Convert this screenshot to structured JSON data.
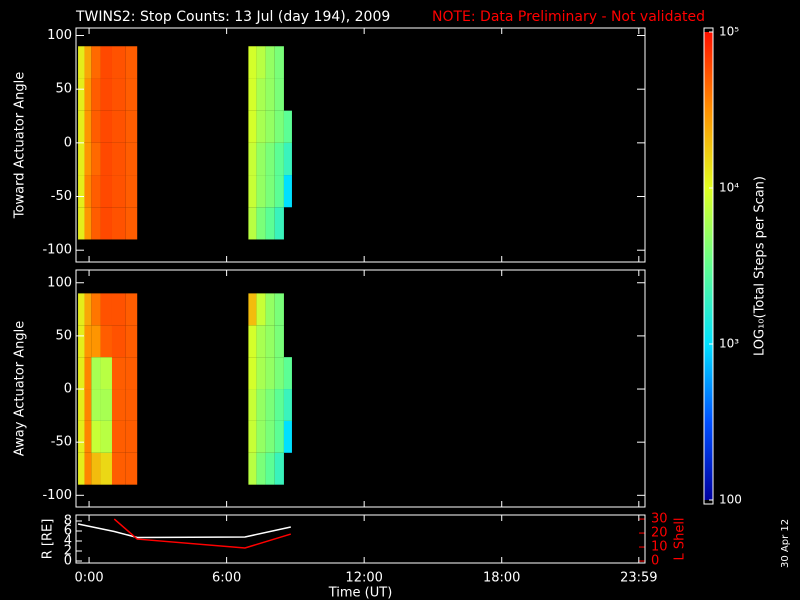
{
  "title": "TWINS2: Stop Counts: 13 Jul (day 194), 2009",
  "note": "NOTE: Data Preliminary - Not validated",
  "date_stamp": "30 Apr 12",
  "colorbar": {
    "label": "LOG₁₀(Total Steps per Scan)",
    "lim": [
      100,
      100000
    ],
    "log": true,
    "ticks": [
      100,
      {
        "value": 1000,
        "label": "10³"
      },
      {
        "value": 10000,
        "label": "10⁴"
      },
      {
        "value": 100000,
        "label": "10⁵"
      }
    ],
    "colormap": [
      "#0000a0",
      "#0050ff",
      "#00e0ff",
      "#60ff90",
      "#e0ff20",
      "#ff9000",
      "#ff1000"
    ]
  },
  "chart_data": [
    {
      "type": "heatmap",
      "ylabel": "Toward Actuator Angle",
      "xlim": [
        -0.57,
        24.25
      ],
      "ylim": [
        -111,
        107
      ],
      "yticks": [
        -100,
        -50,
        0,
        50,
        100
      ],
      "time_edges": [
        -0.48,
        -0.2,
        0.1,
        0.5,
        1.0,
        1.6,
        2.1,
        6.95,
        7.3,
        7.7,
        8.1,
        8.5,
        8.85
      ],
      "angle_edges": [
        -90,
        -60,
        -30,
        0,
        30,
        60,
        90
      ],
      "values": [
        [
          12000,
          12000,
          12000,
          12000,
          12000,
          12000
        ],
        [
          30000,
          35000,
          30000,
          30000,
          30000,
          25000
        ],
        [
          50000,
          50000,
          45000,
          50000,
          50000,
          45000
        ],
        [
          60000,
          60000,
          60000,
          60000,
          60000,
          60000
        ],
        [
          55000,
          55000,
          55000,
          55000,
          55000,
          55000
        ],
        [
          50000,
          50000,
          50000,
          50000,
          50000,
          50000
        ],
        [
          null,
          null,
          null,
          null,
          null,
          null
        ],
        [
          7000,
          8000,
          8000,
          9000,
          9000,
          9000
        ],
        [
          4000,
          5000,
          5000,
          6000,
          6000,
          7000
        ],
        [
          3000,
          4000,
          4000,
          5000,
          5000,
          5000
        ],
        [
          2000,
          3000,
          3000,
          4000,
          4000,
          4000
        ],
        [
          null,
          1000,
          2000,
          3000,
          null,
          null
        ]
      ]
    },
    {
      "type": "heatmap",
      "ylabel": "Away Actuator Angle",
      "xlim": [
        -0.57,
        24.25
      ],
      "ylim": [
        -111,
        112
      ],
      "yticks": [
        -100,
        -50,
        0,
        50,
        100
      ],
      "time_edges": [
        -0.48,
        -0.2,
        0.1,
        0.5,
        1.0,
        1.6,
        2.1,
        6.95,
        7.3,
        7.7,
        8.1,
        8.5,
        8.85
      ],
      "angle_edges": [
        -90,
        -60,
        -30,
        0,
        30,
        60,
        90
      ],
      "values": [
        [
          12000,
          12000,
          12000,
          12000,
          12000,
          12000
        ],
        [
          35000,
          35000,
          35000,
          35000,
          30000,
          25000
        ],
        [
          20000,
          8000,
          6000,
          6000,
          30000,
          40000
        ],
        [
          15000,
          7000,
          6000,
          7000,
          50000,
          55000
        ],
        [
          50000,
          50000,
          50000,
          50000,
          55000,
          55000
        ],
        [
          50000,
          50000,
          50000,
          50000,
          50000,
          50000
        ],
        [
          null,
          null,
          null,
          null,
          null,
          null
        ],
        [
          7000,
          8000,
          8000,
          9000,
          9000,
          20000
        ],
        [
          4000,
          5000,
          5000,
          6000,
          6000,
          8000
        ],
        [
          3000,
          4000,
          4000,
          5000,
          5000,
          5000
        ],
        [
          2000,
          3000,
          3000,
          4000,
          4000,
          4000
        ],
        [
          null,
          1000,
          2000,
          3000,
          null,
          null
        ]
      ]
    },
    {
      "type": "line",
      "xlabel": "Time (UT)",
      "ylabel": "R [RE]",
      "y2label": "L Shell",
      "xlim": [
        -0.57,
        24.25
      ],
      "xticks": [
        {
          "value": 0,
          "label": "0:00"
        },
        {
          "value": 6,
          "label": "6:00"
        },
        {
          "value": 12,
          "label": "12:00"
        },
        {
          "value": 18,
          "label": "18:00"
        },
        {
          "value": 23.98,
          "label": "23:59"
        }
      ],
      "ylim": [
        -0.4,
        9.2
      ],
      "yticks": [
        0,
        2,
        4,
        6,
        8
      ],
      "y2lim": [
        -1.4,
        32.9
      ],
      "y2ticks": [
        0,
        10,
        20,
        30
      ],
      "y2color": "#ff0000",
      "x": [
        -0.48,
        1.1,
        2.1,
        6.8,
        8.8
      ],
      "series": [
        {
          "name": "R",
          "color": "#ffffff",
          "values": [
            7.4,
            5.9,
            4.7,
            4.8,
            6.8
          ]
        },
        {
          "name": "L Shell",
          "color": "#ff0000",
          "axis": "y2",
          "values": [
            null,
            30,
            15.7,
            9.3,
            19.3
          ]
        }
      ]
    }
  ]
}
